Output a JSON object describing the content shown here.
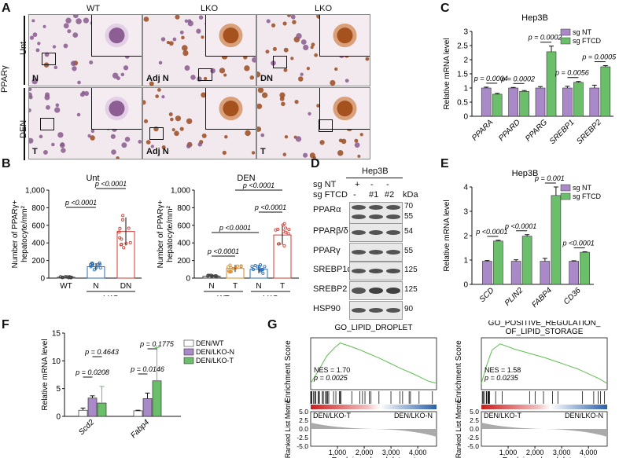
{
  "panel_A": {
    "letter": "A",
    "marker": "PPARγ",
    "col_headers": [
      "WT",
      "LKO",
      "LKO"
    ],
    "row_labels": [
      "Unt",
      "DEN"
    ],
    "tiles": [
      {
        "label": "N",
        "stain": "purple"
      },
      {
        "label": "Adj N",
        "stain": "brown-mixed"
      },
      {
        "label": "DN",
        "stain": "brown-mixed"
      },
      {
        "label": "T",
        "stain": "purple"
      },
      {
        "label": "Adj N",
        "stain": "brown"
      },
      {
        "label": "T",
        "stain": "brown"
      }
    ]
  },
  "panel_B": {
    "letter": "B",
    "ylabel_line1": "Number of PPARγ+",
    "ylabel_line2": "hepatocyte/mm²",
    "left": {
      "title": "Unt",
      "group_label": "LKO",
      "chart_data": {
        "type": "bar",
        "categories": [
          "WT",
          "N",
          "DN"
        ],
        "values": [
          10,
          130,
          530
        ],
        "errors": [
          5,
          40,
          160
        ],
        "ylim": [
          0,
          1000
        ],
        "yticks": [
          "0",
          "200",
          "400",
          "600",
          "800",
          "1,000"
        ],
        "comparisons": [
          {
            "from": 0,
            "to": 1,
            "text": "p <0.0001"
          },
          {
            "from": 1,
            "to": 2,
            "text": "p <0.0001"
          }
        ]
      }
    },
    "right": {
      "title": "DEN",
      "group_labels": [
        "WT",
        "LKO"
      ],
      "chart_data": {
        "type": "bar",
        "categories": [
          "N",
          "T",
          "N",
          "T"
        ],
        "values": [
          20,
          110,
          100,
          490
        ],
        "errors": [
          10,
          40,
          45,
          110
        ],
        "ylim": [
          0,
          1000
        ],
        "yticks": [
          "0",
          "200",
          "400",
          "600",
          "800",
          "1,000"
        ],
        "comparisons": [
          {
            "from": 0,
            "to": 1,
            "text": "p <0.0001"
          },
          {
            "from": 0,
            "to": 2,
            "text": "p <0.0001"
          },
          {
            "from": 2,
            "to": 3,
            "text": "p <0.0001"
          },
          {
            "from": 1,
            "to": 3,
            "text": "p <0.0001"
          }
        ]
      }
    }
  },
  "panel_C": {
    "letter": "C",
    "title": "Hep3B",
    "ylabel": "Relative mRNA level",
    "legend": [
      "sg NT",
      "sg FTCD"
    ],
    "chart_data": {
      "type": "bar",
      "categories": [
        "PPARA",
        "PPARD",
        "PPARG",
        "SREBP1",
        "SREBP2"
      ],
      "series": [
        {
          "name": "sg NT",
          "values": [
            1.0,
            1.0,
            1.0,
            1.0,
            1.0
          ],
          "errors": [
            0.03,
            0.02,
            0.05,
            0.06,
            0.1
          ]
        },
        {
          "name": "sg FTCD",
          "values": [
            0.78,
            0.88,
            2.28,
            1.2,
            1.75
          ],
          "errors": [
            0.03,
            0.03,
            0.2,
            0.03,
            0.04
          ]
        }
      ],
      "ylim": [
        0,
        3
      ],
      "yticks": [
        "0",
        "0.5",
        "1",
        "1.5",
        "2",
        "2.5",
        "3"
      ],
      "pvalues": [
        "p = 0.0004",
        "p = 0.0002",
        "p = 0.0002",
        "p = 0.0056",
        "p = 0.0005"
      ]
    }
  },
  "panel_D": {
    "letter": "D",
    "cell_line": "Hep3B",
    "row1_label": "sg NT",
    "row2_label": "sg FTCD",
    "row1_marks": [
      "+",
      "-",
      "-"
    ],
    "row2_marks": [
      "-",
      "#1",
      "#2"
    ],
    "kda_label": "kDa",
    "blots": [
      {
        "name": "PPARα",
        "kda": [
          "70",
          "55"
        ]
      },
      {
        "name": "PPARβ/δ",
        "kda": [
          "54"
        ]
      },
      {
        "name": "PPARγ",
        "kda": [
          "55"
        ]
      },
      {
        "name": "SREBP1c",
        "kda": [
          "125"
        ]
      },
      {
        "name": "SREBP2",
        "kda": [
          "125"
        ]
      },
      {
        "name": "HSP90",
        "kda": [
          "90"
        ]
      }
    ]
  },
  "panel_E": {
    "letter": "E",
    "title": "Hep3B",
    "ylabel": "Relative mRNA level",
    "legend": [
      "sg NT",
      "sg FTCD"
    ],
    "chart_data": {
      "type": "bar",
      "categories": [
        "SCD",
        "PLIN2",
        "FABP4",
        "CD36"
      ],
      "series": [
        {
          "name": "sg NT",
          "values": [
            0.95,
            0.95,
            0.95,
            0.95
          ],
          "errors": [
            0.03,
            0.06,
            0.12,
            0.02
          ]
        },
        {
          "name": "sg FTCD",
          "values": [
            1.78,
            1.98,
            3.65,
            1.32
          ],
          "errors": [
            0.03,
            0.06,
            0.35,
            0.02
          ]
        }
      ],
      "ylim": [
        0,
        4
      ],
      "yticks": [
        "0",
        "1",
        "2",
        "3",
        "4"
      ],
      "pvalues": [
        "p <0.0001",
        "p <0.0001",
        "p = 0.001",
        "p <0.0001"
      ]
    }
  },
  "panel_F": {
    "letter": "F",
    "ylabel": "Relative mRNA level",
    "legend": [
      "DEN/WT",
      "DEN/LKO-N",
      "DEN/LKO-T"
    ],
    "chart_data": {
      "type": "bar",
      "categories": [
        "Scd2",
        "Fabp4"
      ],
      "series": [
        {
          "name": "DEN/WT",
          "values": [
            1.1,
            1.0
          ],
          "errors": [
            0.4,
            0.1
          ]
        },
        {
          "name": "DEN/LKO-N",
          "values": [
            3.3,
            3.2
          ],
          "errors": [
            0.4,
            1.0
          ]
        },
        {
          "name": "DEN/LKO-T",
          "values": [
            2.4,
            6.4
          ],
          "errors": [
            3.0,
            6.0
          ]
        }
      ],
      "ylim": [
        0,
        15
      ],
      "yticks": [
        "0",
        "5",
        "10",
        "15"
      ],
      "pvalues": [
        {
          "text": "p = 0.0208",
          "cat": 0,
          "from": 0,
          "to": 1
        },
        {
          "text": "p = 0.4643",
          "cat": 0,
          "from": 1,
          "to": 2
        },
        {
          "text": "p = 0.0146",
          "cat": 1,
          "from": 0,
          "to": 1
        },
        {
          "text": "p = 0.1775",
          "cat": 1,
          "from": 1,
          "to": 2
        }
      ]
    }
  },
  "panel_G": {
    "letter": "G",
    "ylabel_top": "Enrichment Score",
    "ylabel_bottom": "Ranked List Metric",
    "xlabel": "Rank in ordered dataset",
    "left_group": "DEN/LKO-T",
    "right_group": "DEN/LKO-N",
    "left": {
      "title": "GO_LIPID_DROPLET",
      "nes": "NES = 1.70",
      "p": "p = 0.0025",
      "chart_data": {
        "type": "line",
        "x": [
          0,
          300,
          600,
          900,
          1100,
          1400,
          1800,
          2200,
          2600,
          3000,
          3400,
          3800,
          4200,
          4400,
          4700
        ],
        "y": [
          0,
          0.2,
          0.42,
          0.55,
          0.62,
          0.58,
          0.52,
          0.45,
          0.38,
          0.3,
          0.22,
          0.15,
          0.07,
          0.03,
          0
        ],
        "xticks": [
          "1,000",
          "2,000",
          "3,000",
          "4,000"
        ],
        "ylim": [
          -0.1,
          0.7
        ],
        "metric_yticks": [
          "5.0",
          "2.5",
          "0.0",
          "-2.5",
          "-5.0"
        ]
      }
    },
    "right": {
      "title_line1": "GO_POSITIVE_REGULATION_",
      "title_line2": "OF_LIPID_STORAGE",
      "nes": "NES = 1.58",
      "p": "p = 0.0235",
      "chart_data": {
        "type": "line",
        "x": [
          0,
          200,
          400,
          700,
          900,
          1200,
          1600,
          2000,
          2400,
          2800,
          3200,
          3600,
          4000,
          4400,
          4700
        ],
        "y": [
          0,
          0.3,
          0.55,
          0.65,
          0.62,
          0.57,
          0.52,
          0.47,
          0.42,
          0.36,
          0.3,
          0.24,
          0.16,
          0.08,
          0
        ],
        "xticks": [
          "1,000",
          "2,000",
          "3,000",
          "4,000"
        ],
        "ylim": [
          -0.1,
          0.75
        ],
        "metric_yticks": [
          "5.0",
          "2.5",
          "0.0",
          "-2.5",
          "-5.0"
        ]
      }
    }
  }
}
